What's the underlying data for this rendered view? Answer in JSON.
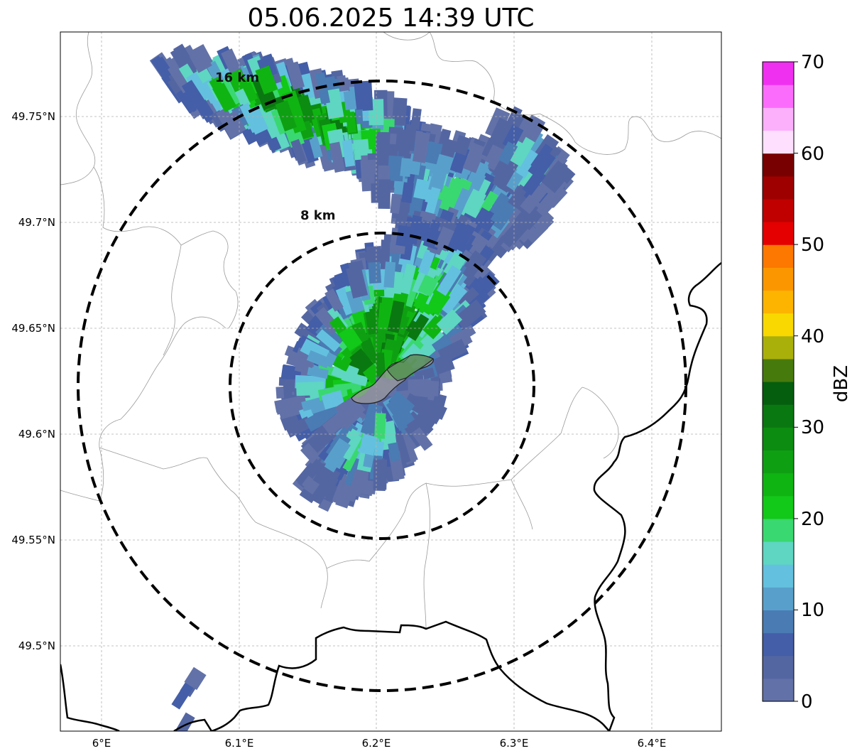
{
  "title": "05.06.2025 14:39 UTC",
  "map": {
    "lat_labels": [
      "49.75°N",
      "49.7°N",
      "49.65°N",
      "49.6°N",
      "49.55°N",
      "49.5°N"
    ],
    "lon_labels": [
      "6°E",
      "6.1°E",
      "6.2°E",
      "6.3°E",
      "6.4°E"
    ],
    "range_rings": [
      {
        "label": "8 km",
        "radius_km": 8
      },
      {
        "label": "16 km",
        "radius_km": 16
      }
    ],
    "colors": {
      "grid": "#b0b0b0",
      "border": "#000000",
      "admin_lines": "#9a9a9a",
      "ring": "#000000",
      "city_fill": "#7a7a7a"
    }
  },
  "colorbar": {
    "label": "dBZ",
    "ticks": [
      "0",
      "10",
      "20",
      "30",
      "40",
      "50",
      "60",
      "70"
    ],
    "min": 0,
    "max": 70,
    "step": 2.5,
    "colors": [
      "#6272a8",
      "#5466a2",
      "#445ea8",
      "#4a7bb3",
      "#58a0cb",
      "#64c0df",
      "#5ed6c2",
      "#3ad870",
      "#12c818",
      "#10b412",
      "#0ea012",
      "#0c8c10",
      "#0a7810",
      "#055e0e",
      "#477a0c",
      "#aab00a",
      "#f8d800",
      "#fcb400",
      "#fc9600",
      "#fc7800",
      "#e40000",
      "#c00000",
      "#9e0000",
      "#780000",
      "#fee0fe",
      "#fcb0fc",
      "#fc6cfc",
      "#f030f0"
    ]
  }
}
